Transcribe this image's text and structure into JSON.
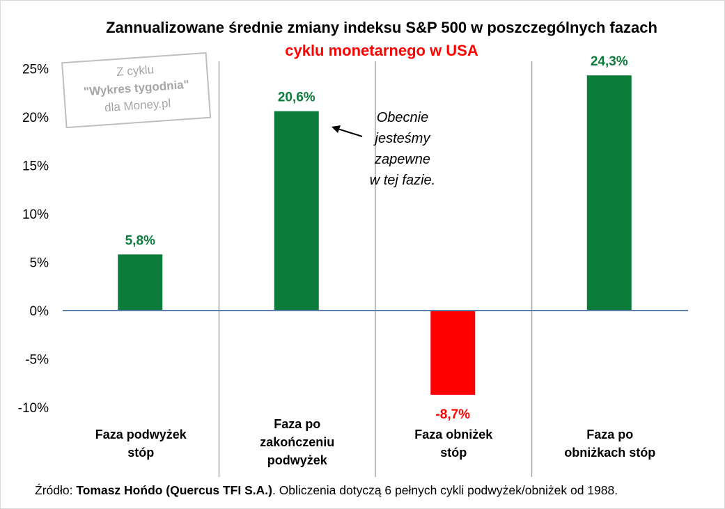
{
  "chart_data": {
    "type": "bar",
    "title_line1": "Zannualizowane średnie zmiany indeksu S&P 500 w poszczególnych fazach",
    "title_line2": "cyklu monetarnego w USA",
    "categories": [
      [
        "Faza podwyżek",
        "stóp"
      ],
      [
        "Faza po",
        "zakończeniu",
        "podwyżek"
      ],
      [
        "Faza obniżek",
        "stóp"
      ],
      [
        "Faza po",
        "obniżkach stóp"
      ]
    ],
    "values": [
      5.8,
      20.6,
      -8.7,
      24.3
    ],
    "value_labels": [
      "5,8%",
      "20,6%",
      "-8,7%",
      "24,3%"
    ],
    "ylim": [
      -10,
      25
    ],
    "yticks": [
      25,
      20,
      15,
      10,
      5,
      0,
      -5,
      -10
    ],
    "ytick_labels": [
      "25%",
      "20%",
      "15%",
      "10%",
      "5%",
      "0%",
      "-5%",
      "-10%"
    ],
    "annotation": [
      "Obecnie",
      "jesteśmy",
      "zapewne",
      "w tej fazie."
    ],
    "stamp": [
      "Z cyklu",
      "\"Wykres tygodnia\"",
      "dla Money.pl"
    ],
    "colors": {
      "positive": "#0c7c3a",
      "negative": "#ff0000",
      "title_highlight": "#ff0000",
      "axis": "#5b7fa6",
      "divider": "#a6a6a6"
    }
  },
  "source": {
    "prefix": "Źródło: ",
    "author": "Tomasz Hońdo (Quercus TFI S.A.)",
    "suffix": ". Obliczenia dotyczą 6 pełnych cykli podwyżek/obniżek od 1988."
  }
}
